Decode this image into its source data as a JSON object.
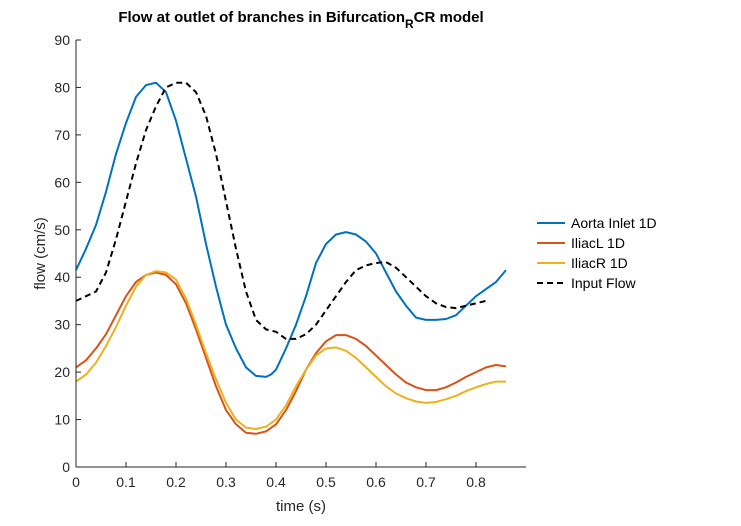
{
  "chart_data": {
    "type": "line",
    "title_main": "Flow at outlet of branches in Bifurcation",
    "title_sub": "R",
    "title_tail": "CR model",
    "xlabel": "time (s)",
    "ylabel": "flow (cm/s)",
    "xlim": [
      0,
      0.9
    ],
    "ylim": [
      0,
      90
    ],
    "xticks": [
      0,
      0.1,
      0.2,
      0.3,
      0.4,
      0.5,
      0.6,
      0.7,
      0.8
    ],
    "xtick_labels": [
      "0",
      "0.1",
      "0.2",
      "0.3",
      "0.4",
      "0.5",
      "0.6",
      "0.7",
      "0.8"
    ],
    "yticks": [
      0,
      10,
      20,
      30,
      40,
      50,
      60,
      70,
      80,
      90
    ],
    "ytick_labels": [
      "0",
      "10",
      "20",
      "30",
      "40",
      "50",
      "60",
      "70",
      "80",
      "90"
    ],
    "grid": false,
    "legend_position": "outside-right",
    "series": [
      {
        "name": "Aorta Inlet 1D",
        "color": "#0072BD",
        "dash": "solid",
        "points": [
          [
            0,
            41.5
          ],
          [
            0.02,
            46
          ],
          [
            0.04,
            51
          ],
          [
            0.06,
            58
          ],
          [
            0.08,
            66
          ],
          [
            0.1,
            72.5
          ],
          [
            0.12,
            78
          ],
          [
            0.14,
            80.5
          ],
          [
            0.16,
            81
          ],
          [
            0.18,
            79
          ],
          [
            0.2,
            73
          ],
          [
            0.22,
            65
          ],
          [
            0.24,
            57
          ],
          [
            0.26,
            47
          ],
          [
            0.28,
            38
          ],
          [
            0.3,
            30
          ],
          [
            0.32,
            25
          ],
          [
            0.34,
            21
          ],
          [
            0.36,
            19.2
          ],
          [
            0.38,
            19
          ],
          [
            0.39,
            19.5
          ],
          [
            0.4,
            20.5
          ],
          [
            0.42,
            25
          ],
          [
            0.44,
            30
          ],
          [
            0.46,
            36
          ],
          [
            0.48,
            43
          ],
          [
            0.5,
            47
          ],
          [
            0.52,
            49
          ],
          [
            0.54,
            49.5
          ],
          [
            0.56,
            49
          ],
          [
            0.58,
            47.5
          ],
          [
            0.6,
            45
          ],
          [
            0.62,
            41
          ],
          [
            0.64,
            37
          ],
          [
            0.66,
            34
          ],
          [
            0.68,
            31.5
          ],
          [
            0.7,
            31
          ],
          [
            0.72,
            31
          ],
          [
            0.74,
            31.2
          ],
          [
            0.76,
            32
          ],
          [
            0.78,
            34
          ],
          [
            0.8,
            36
          ],
          [
            0.82,
            37.5
          ],
          [
            0.84,
            39
          ],
          [
            0.86,
            41.5
          ]
        ]
      },
      {
        "name": "IliacL 1D",
        "color": "#D95319",
        "dash": "solid",
        "points": [
          [
            0,
            21
          ],
          [
            0.02,
            22.5
          ],
          [
            0.04,
            25
          ],
          [
            0.06,
            28
          ],
          [
            0.08,
            32
          ],
          [
            0.1,
            36
          ],
          [
            0.12,
            39
          ],
          [
            0.14,
            40.5
          ],
          [
            0.16,
            41
          ],
          [
            0.18,
            40.5
          ],
          [
            0.2,
            38.5
          ],
          [
            0.22,
            34.5
          ],
          [
            0.24,
            29
          ],
          [
            0.26,
            23
          ],
          [
            0.28,
            17
          ],
          [
            0.3,
            12
          ],
          [
            0.32,
            9
          ],
          [
            0.34,
            7.2
          ],
          [
            0.36,
            7
          ],
          [
            0.38,
            7.5
          ],
          [
            0.4,
            9
          ],
          [
            0.42,
            12
          ],
          [
            0.44,
            16
          ],
          [
            0.46,
            20.5
          ],
          [
            0.48,
            24
          ],
          [
            0.5,
            26.5
          ],
          [
            0.52,
            27.8
          ],
          [
            0.54,
            27.8
          ],
          [
            0.56,
            27
          ],
          [
            0.58,
            25.5
          ],
          [
            0.6,
            23.5
          ],
          [
            0.62,
            21.5
          ],
          [
            0.64,
            19.5
          ],
          [
            0.66,
            17.8
          ],
          [
            0.68,
            16.8
          ],
          [
            0.7,
            16.2
          ],
          [
            0.72,
            16.2
          ],
          [
            0.74,
            16.8
          ],
          [
            0.76,
            17.8
          ],
          [
            0.78,
            19
          ],
          [
            0.8,
            20
          ],
          [
            0.82,
            21
          ],
          [
            0.84,
            21.5
          ],
          [
            0.86,
            21.2
          ]
        ]
      },
      {
        "name": "IliacR 1D",
        "color": "#EDB120",
        "dash": "solid",
        "points": [
          [
            0,
            18
          ],
          [
            0.02,
            19.5
          ],
          [
            0.04,
            22
          ],
          [
            0.06,
            25.5
          ],
          [
            0.08,
            29.5
          ],
          [
            0.1,
            34
          ],
          [
            0.12,
            38
          ],
          [
            0.14,
            40.5
          ],
          [
            0.16,
            41.3
          ],
          [
            0.18,
            41
          ],
          [
            0.2,
            39.5
          ],
          [
            0.22,
            35.5
          ],
          [
            0.24,
            30
          ],
          [
            0.26,
            24
          ],
          [
            0.28,
            18.5
          ],
          [
            0.3,
            13.5
          ],
          [
            0.32,
            10
          ],
          [
            0.34,
            8.3
          ],
          [
            0.36,
            8
          ],
          [
            0.38,
            8.5
          ],
          [
            0.4,
            10
          ],
          [
            0.42,
            13
          ],
          [
            0.44,
            17
          ],
          [
            0.46,
            20.5
          ],
          [
            0.48,
            23.5
          ],
          [
            0.5,
            25
          ],
          [
            0.52,
            25.2
          ],
          [
            0.54,
            24.5
          ],
          [
            0.56,
            23
          ],
          [
            0.58,
            21
          ],
          [
            0.6,
            19
          ],
          [
            0.62,
            17
          ],
          [
            0.64,
            15.5
          ],
          [
            0.66,
            14.5
          ],
          [
            0.68,
            13.8
          ],
          [
            0.7,
            13.5
          ],
          [
            0.72,
            13.7
          ],
          [
            0.74,
            14.3
          ],
          [
            0.76,
            15
          ],
          [
            0.78,
            16
          ],
          [
            0.8,
            16.8
          ],
          [
            0.82,
            17.5
          ],
          [
            0.84,
            18
          ],
          [
            0.86,
            18
          ]
        ]
      },
      {
        "name": "Input Flow",
        "color": "#000000",
        "dash": "dashed",
        "points": [
          [
            0,
            35
          ],
          [
            0.02,
            36
          ],
          [
            0.04,
            37
          ],
          [
            0.06,
            41
          ],
          [
            0.08,
            48
          ],
          [
            0.1,
            56
          ],
          [
            0.12,
            64
          ],
          [
            0.14,
            71
          ],
          [
            0.16,
            76
          ],
          [
            0.18,
            80
          ],
          [
            0.2,
            81
          ],
          [
            0.22,
            81
          ],
          [
            0.24,
            79
          ],
          [
            0.26,
            74
          ],
          [
            0.28,
            66
          ],
          [
            0.3,
            56
          ],
          [
            0.32,
            46
          ],
          [
            0.34,
            37
          ],
          [
            0.36,
            31
          ],
          [
            0.38,
            29
          ],
          [
            0.4,
            28.5
          ],
          [
            0.42,
            27
          ],
          [
            0.44,
            27
          ],
          [
            0.46,
            28
          ],
          [
            0.48,
            30
          ],
          [
            0.5,
            33
          ],
          [
            0.52,
            36
          ],
          [
            0.54,
            39
          ],
          [
            0.56,
            41.5
          ],
          [
            0.58,
            42.5
          ],
          [
            0.6,
            43
          ],
          [
            0.62,
            43.2
          ],
          [
            0.64,
            42
          ],
          [
            0.66,
            40
          ],
          [
            0.68,
            38
          ],
          [
            0.7,
            36
          ],
          [
            0.72,
            34.5
          ],
          [
            0.74,
            33.7
          ],
          [
            0.76,
            33.5
          ],
          [
            0.78,
            34
          ],
          [
            0.8,
            34.5
          ],
          [
            0.82,
            35
          ]
        ]
      }
    ]
  }
}
